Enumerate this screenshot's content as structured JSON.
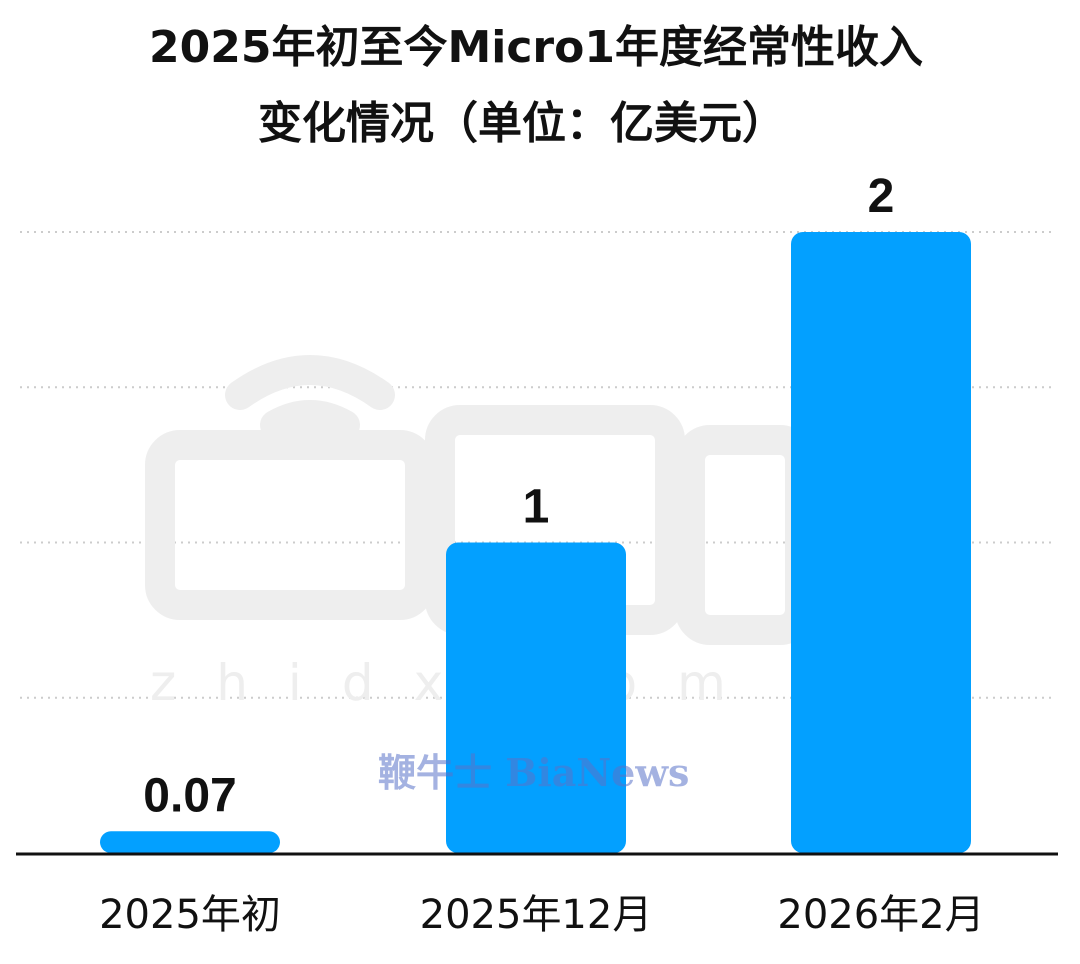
{
  "chart_data": {
    "type": "bar",
    "title_lines": [
      "2025年初至今Micro1年度经常性收入",
      "变化情况（单位：亿美元）"
    ],
    "categories": [
      "2025年初",
      "2025年12月",
      "2026年2月"
    ],
    "values": [
      0.07,
      1,
      2
    ],
    "value_labels": [
      "0.07",
      "1",
      "2"
    ],
    "xlabel": "",
    "ylabel": "",
    "ylim": [
      0,
      2
    ],
    "grid": true,
    "legend": "none",
    "bar_color": "#03a0ff",
    "gridline_color": "#cccccc",
    "axis_color": "#111111"
  },
  "watermark": {
    "brand_text": "鞭牛士 BiaNews",
    "latin_text": "zhidx.com",
    "color": "#5a73c8"
  }
}
